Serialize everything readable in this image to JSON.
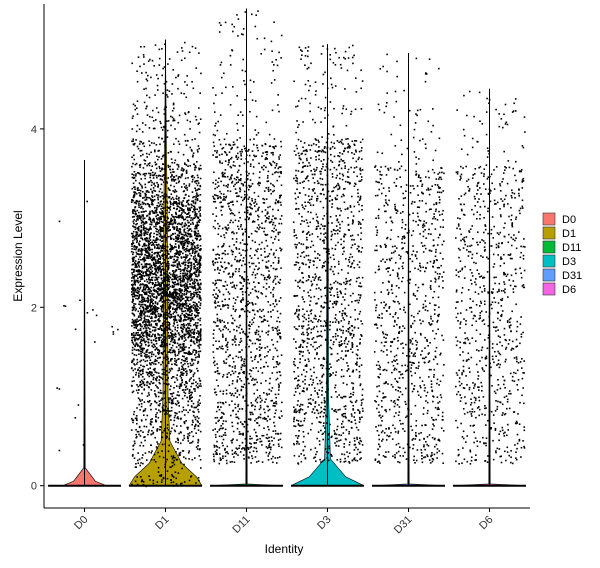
{
  "chart_data": {
    "type": "violin",
    "xlabel": "Identity",
    "ylabel": "Expression Level",
    "ylim": [
      -0.25,
      5.4
    ],
    "yticks": [
      0,
      2,
      4
    ],
    "categories": [
      "D0",
      "D1",
      "D11",
      "D3",
      "D31",
      "D6"
    ],
    "series": [
      {
        "name": "D0",
        "color": "#F8766D",
        "max": 3.65,
        "points": 20,
        "dense_max": 2.5,
        "violin": [
          [
            0,
            0.6
          ],
          [
            0.05,
            0.3
          ],
          [
            0.2,
            0.02
          ],
          [
            3.65,
            0
          ]
        ]
      },
      {
        "name": "D1",
        "color": "#B79F00",
        "max": 5.0,
        "points": 4200,
        "dense_max": 4.3,
        "violin": [
          [
            0,
            1.0
          ],
          [
            0.1,
            0.85
          ],
          [
            0.25,
            0.45
          ],
          [
            0.5,
            0.12
          ],
          [
            1.0,
            0.07
          ],
          [
            2.0,
            0.06
          ],
          [
            3.0,
            0.05
          ],
          [
            4.0,
            0.02
          ],
          [
            5.0,
            0
          ]
        ]
      },
      {
        "name": "D11",
        "color": "#00BA38",
        "max": 5.35,
        "points": 1500,
        "dense_max": 3.9,
        "violin": [
          [
            0,
            1.0
          ],
          [
            0.02,
            0.02
          ],
          [
            5.35,
            0
          ]
        ]
      },
      {
        "name": "D3",
        "color": "#00BFC4",
        "max": 4.95,
        "points": 1400,
        "dense_max": 3.9,
        "violin": [
          [
            0,
            1.0
          ],
          [
            0.1,
            0.5
          ],
          [
            0.3,
            0.08
          ],
          [
            1.0,
            0.03
          ],
          [
            2.8,
            0.02
          ],
          [
            4.1,
            0.005
          ],
          [
            4.95,
            0
          ]
        ]
      },
      {
        "name": "D31",
        "color": "#619CFF",
        "max": 4.85,
        "points": 900,
        "dense_max": 3.6,
        "violin": [
          [
            0,
            1.0
          ],
          [
            0.02,
            0.02
          ],
          [
            4.85,
            0
          ]
        ]
      },
      {
        "name": "D6",
        "color": "#F564E3",
        "max": 4.45,
        "points": 800,
        "dense_max": 3.6,
        "violin": [
          [
            0,
            1.0
          ],
          [
            0.02,
            0.02
          ],
          [
            4.45,
            0
          ]
        ]
      }
    ],
    "legend": {
      "position": "right",
      "entries": [
        "D0",
        "D1",
        "D11",
        "D3",
        "D31",
        "D6"
      ]
    },
    "grid": false
  }
}
